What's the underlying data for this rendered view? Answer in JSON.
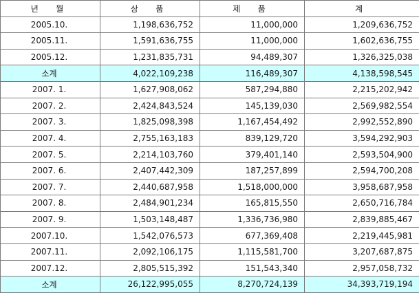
{
  "columns": [
    "년 월",
    "상 품",
    "제 품",
    "계"
  ],
  "rows": [
    {
      "month": "2005.10.",
      "goods": "1,198,636,752",
      "products": "11,000,000",
      "total": "1,209,636,752",
      "subtotal": false
    },
    {
      "month": "2005.11.",
      "goods": "1,591,636,755",
      "products": "11,000,000",
      "total": "1,602,636,755",
      "subtotal": false
    },
    {
      "month": "2005.12.",
      "goods": "1,231,835,731",
      "products": "94,489,307",
      "total": "1,326,325,038",
      "subtotal": false
    },
    {
      "month": "소계",
      "goods": "4,022,109,238",
      "products": "116,489,307",
      "total": "4,138,598,545",
      "subtotal": true
    },
    {
      "month": "2007. 1.",
      "goods": "1,627,908,062",
      "products": "587,294,880",
      "total": "2,215,202,942",
      "subtotal": false
    },
    {
      "month": "2007. 2.",
      "goods": "2,424,843,524",
      "products": "145,139,030",
      "total": "2,569,982,554",
      "subtotal": false
    },
    {
      "month": "2007. 3.",
      "goods": "1,825,098,398",
      "products": "1,167,454,492",
      "total": "2,992,552,890",
      "subtotal": false
    },
    {
      "month": "2007. 4.",
      "goods": "2,755,163,183",
      "products": "839,129,720",
      "total": "3,594,292,903",
      "subtotal": false
    },
    {
      "month": "2007. 5.",
      "goods": "2,214,103,760",
      "products": "379,401,140",
      "total": "2,593,504,900",
      "subtotal": false
    },
    {
      "month": "2007. 6.",
      "goods": "2,407,442,309",
      "products": "187,257,899",
      "total": "2,594,700,208",
      "subtotal": false
    },
    {
      "month": "2007. 7.",
      "goods": "2,440,687,958",
      "products": "1,518,000,000",
      "total": "3,958,687,958",
      "subtotal": false
    },
    {
      "month": "2007. 8.",
      "goods": "2,484,901,234",
      "products": "165,815,550",
      "total": "2,650,716,784",
      "subtotal": false
    },
    {
      "month": "2007. 9.",
      "goods": "1,503,148,487",
      "products": "1,336,736,980",
      "total": "2,839,885,467",
      "subtotal": false
    },
    {
      "month": "2007.10.",
      "goods": "1,542,076,573",
      "products": "677,369,408",
      "total": "2,219,445,981",
      "subtotal": false
    },
    {
      "month": "2007.11.",
      "goods": "2,092,106,175",
      "products": "1,115,581,700",
      "total": "3,207,687,875",
      "subtotal": false
    },
    {
      "month": "2007.12.",
      "goods": "2,805,515,392",
      "products": "151,543,340",
      "total": "2,957,058,732",
      "subtotal": false
    },
    {
      "month": "소계",
      "goods": "26,122,995,055",
      "products": "8,270,724,139",
      "total": "34,393,719,194",
      "subtotal": true
    }
  ],
  "colors": {
    "subtotal_background": "#ccffff",
    "border": "#7a7a7a"
  }
}
